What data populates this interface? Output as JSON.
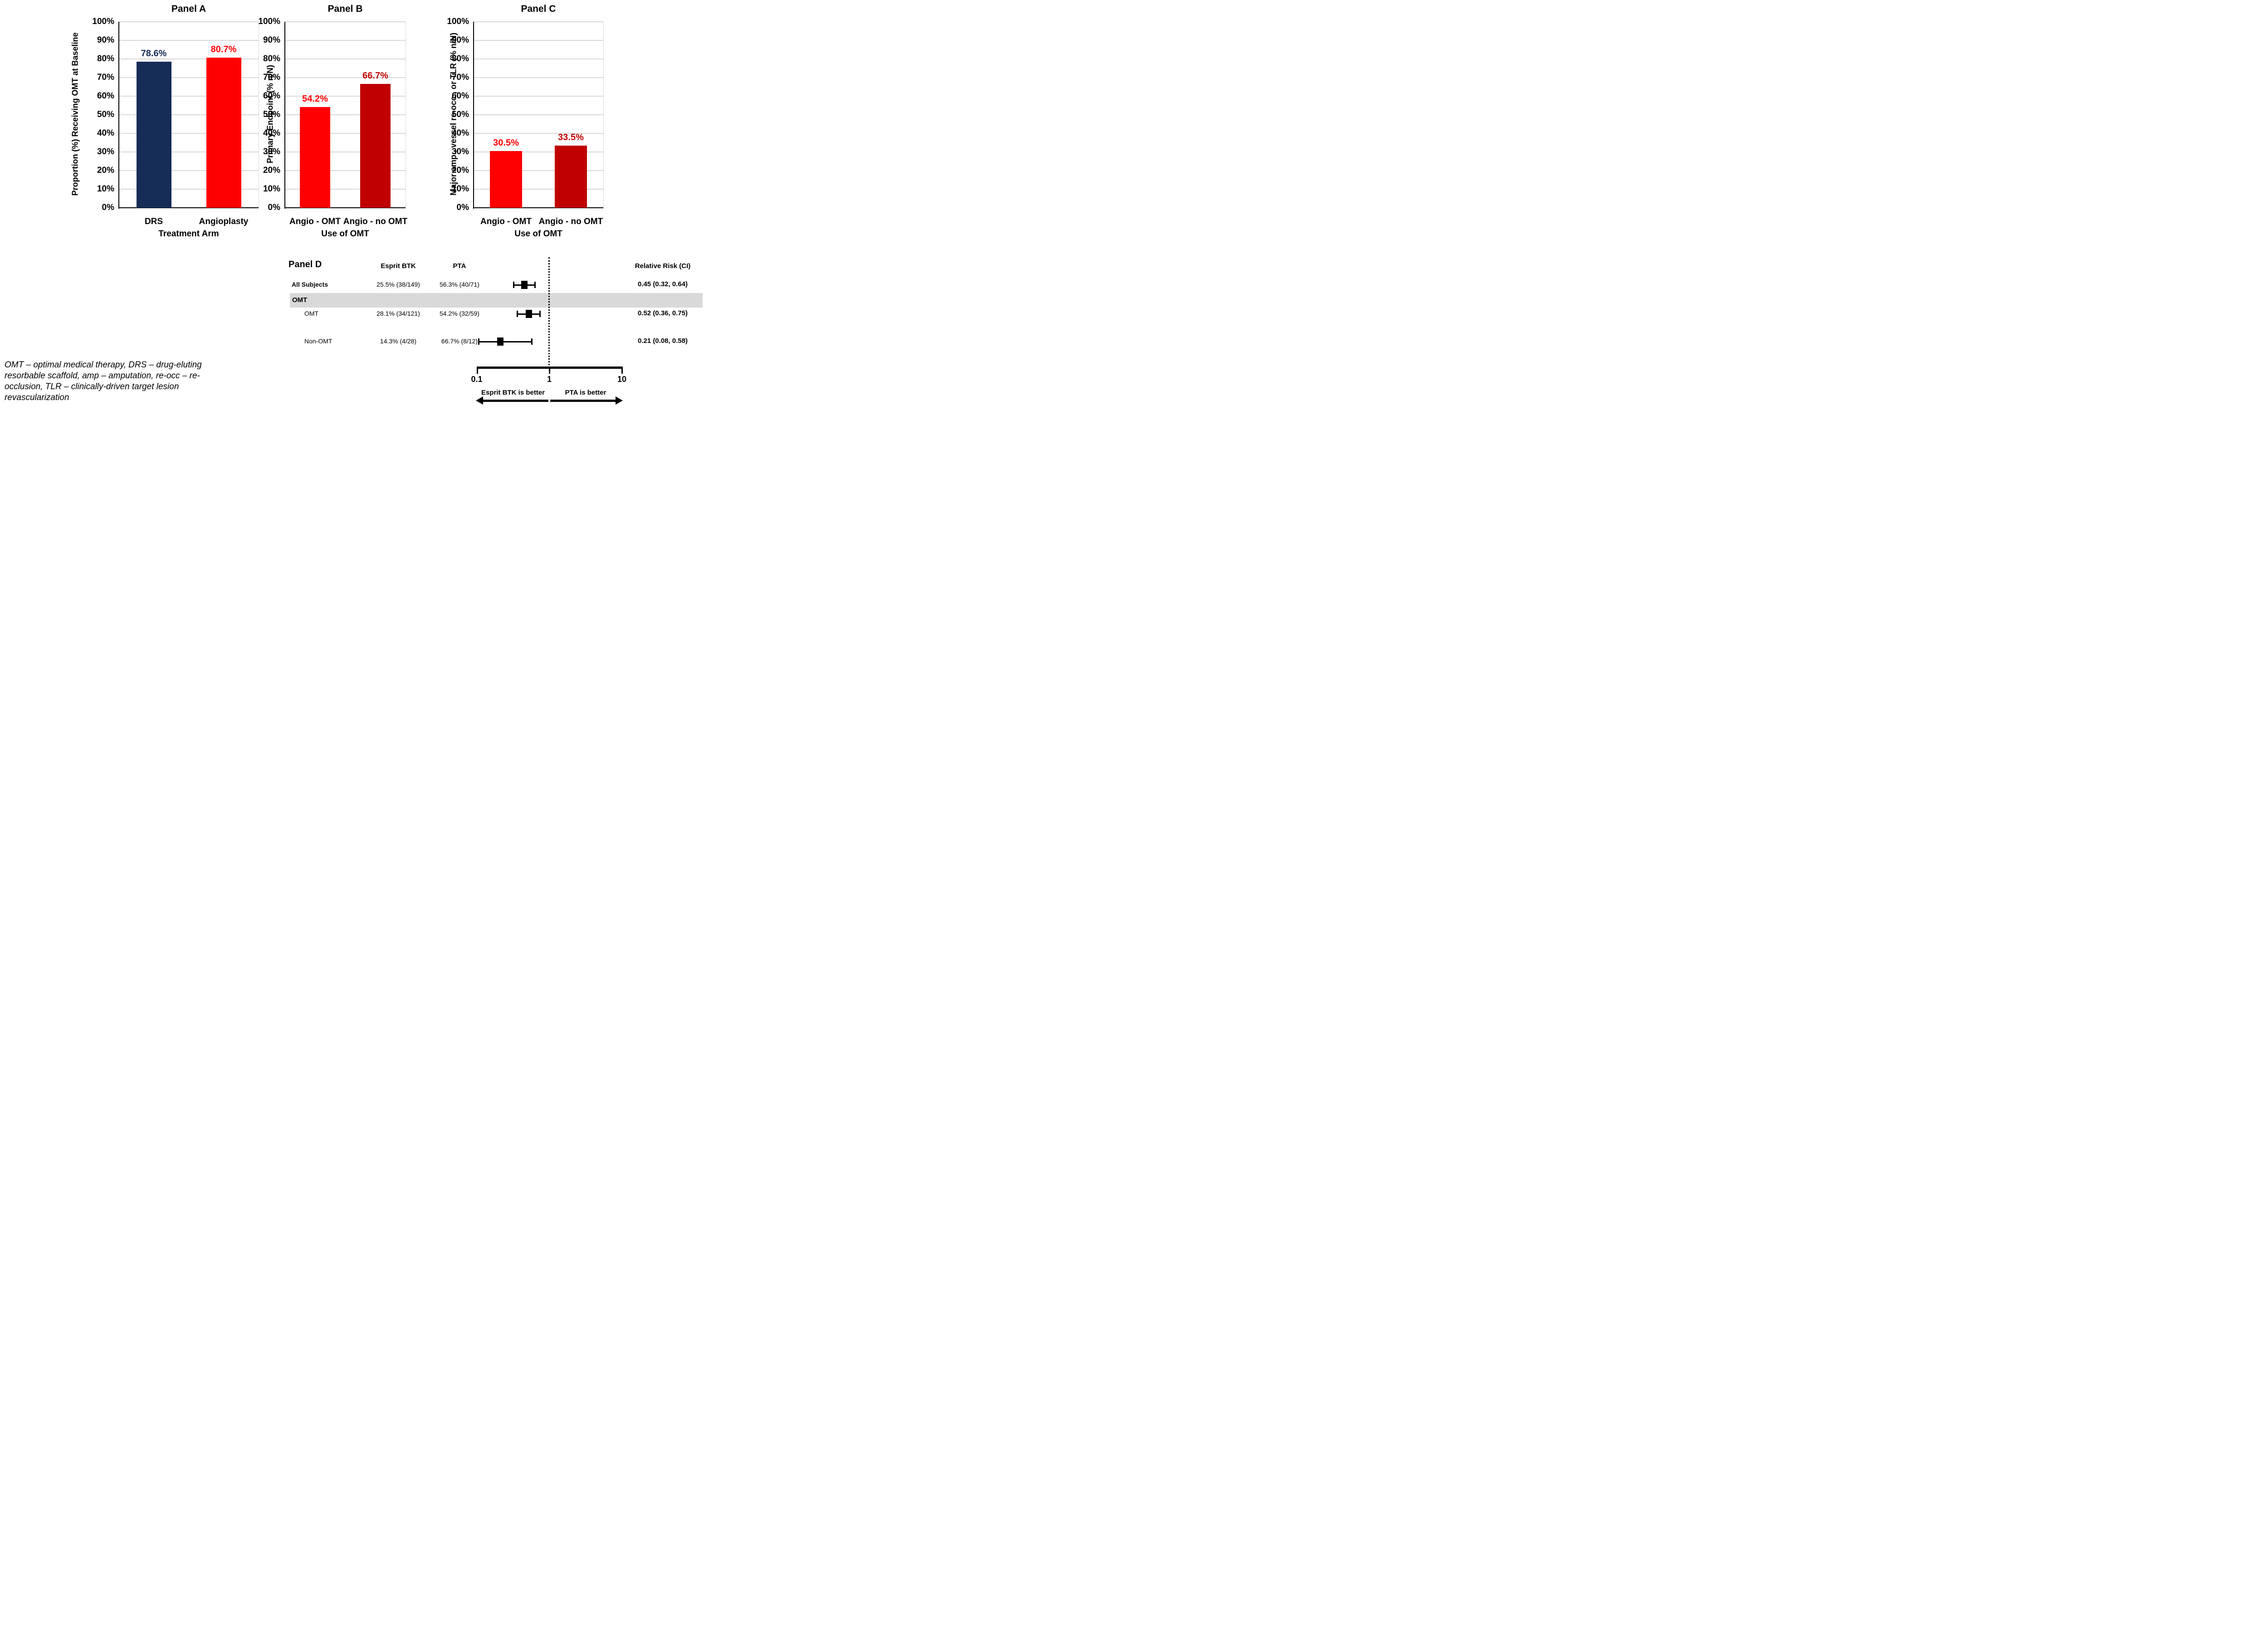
{
  "figure": {
    "background": "#ffffff",
    "accent_navy": "#152c57",
    "accent_red": "#ff0000",
    "accent_dark_red": "#c00000",
    "band_gray": "#d9d9d9",
    "gridline_gray": "#d9d9d9"
  },
  "chart_data": [
    {
      "id": "panel-a",
      "type": "bar",
      "title": "Panel A",
      "xlabel": "Treatment Arm",
      "ylabel": "Proportion (%) Receiving OMT at Baseline",
      "ylim": [
        0,
        100
      ],
      "ytick_step": 10,
      "ytick_suffix": "%",
      "grid": true,
      "categories": [
        "DRS",
        "Angioplasty"
      ],
      "values": [
        78.6,
        80.7
      ],
      "value_labels": [
        "78.6%",
        "80.7%"
      ],
      "bar_colors": [
        "#152c57",
        "#ff0000"
      ],
      "value_label_colors": [
        "#152c57",
        "#ff0000"
      ]
    },
    {
      "id": "panel-b",
      "type": "bar",
      "title": "Panel B",
      "xlabel": "Use of OMT",
      "ylabel": "Primary Endpoint (% n/N)",
      "ylim": [
        0,
        100
      ],
      "ytick_step": 10,
      "ytick_suffix": "%",
      "grid": true,
      "categories": [
        "Angio - OMT",
        "Angio - no OMT"
      ],
      "values": [
        54.2,
        66.7
      ],
      "value_labels": [
        "54.2%",
        "66.7%"
      ],
      "bar_colors": [
        "#ff0000",
        "#c00000"
      ],
      "value_label_colors": [
        "#ff0000",
        "#c00000"
      ]
    },
    {
      "id": "panel-c",
      "type": "bar",
      "title": "Panel C",
      "xlabel": "Use of OMT",
      "ylabel": "Major amp., vessel re-occ., or TLR (% n/N)",
      "ylim": [
        0,
        100
      ],
      "ytick_step": 10,
      "ytick_suffix": "%",
      "grid": true,
      "categories": [
        "Angio - OMT",
        "Angio - no OMT"
      ],
      "values": [
        30.5,
        33.5
      ],
      "value_labels": [
        "30.5%",
        "33.5%"
      ],
      "bar_colors": [
        "#ff0000",
        "#c00000"
      ],
      "value_label_colors": [
        "#ff0000",
        "#c00000"
      ]
    },
    {
      "id": "panel-d",
      "type": "forest",
      "title": "Panel D",
      "columns": [
        "Esprit BTK",
        "PTA"
      ],
      "rr_column": "Relative Risk (CI)",
      "rows": [
        {
          "label": "All Subjects",
          "bold_label": true,
          "indent": false,
          "esprit": "25.5% (38/149)",
          "pta": "56.3% (40/71)",
          "rr": 0.45,
          "ci": [
            0.32,
            0.64
          ],
          "rr_text": "0.45 (0.32, 0.64)"
        },
        {
          "label": "OMT",
          "section": true
        },
        {
          "label": "OMT",
          "bold_label": false,
          "indent": true,
          "esprit": "28.1% (34/121)",
          "pta": "54.2% (32/59)",
          "rr": 0.52,
          "ci": [
            0.36,
            0.75
          ],
          "rr_text": "0.52 (0.36, 0.75)"
        },
        {
          "label": "Non-OMT",
          "bold_label": false,
          "indent": true,
          "esprit": "14.3% (4/28)",
          "pta": "66.7% (8/12)",
          "rr": 0.21,
          "ci": [
            0.08,
            0.58
          ],
          "rr_text": "0.21 (0.08, 0.58)"
        }
      ],
      "axis": {
        "scale": "log",
        "min": 0.1,
        "center": 1,
        "max": 10,
        "tick_labels": [
          "0.1",
          "1",
          "10"
        ]
      },
      "reference_line": 1,
      "left_note": "Esprit BTK is better",
      "right_note": "PTA is better",
      "section_band_color": "#d9d9d9",
      "marker_color": "#000000"
    }
  ],
  "footnote": "OMT – optimal medical therapy, DRS – drug-eluting resorbable scaffold, amp – amputation, re-occ – re-occlusion, TLR – clinically-driven target lesion revascularization"
}
